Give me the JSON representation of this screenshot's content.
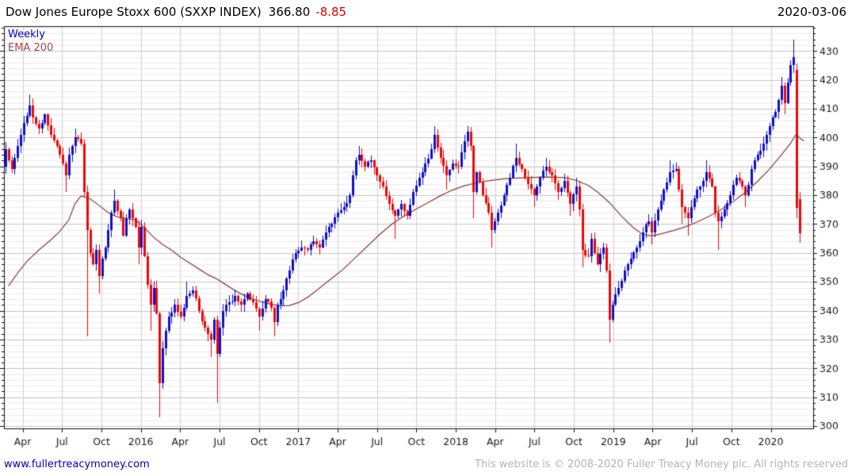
{
  "header": {
    "title": "Dow Jones Europe Stoxx 600 (SXXP INDEX)",
    "last_price": "366.80",
    "change": "-8.85",
    "date": "2020-03-06"
  },
  "legend": {
    "series_label": "Weekly",
    "ema_label": "EMA 200"
  },
  "footer": {
    "site_link": "www.fullertreacymoney.com",
    "copyright": "This website is © 2008-2020 Fuller Treacy Money plc. All rights reserved"
  },
  "colors": {
    "up": "#1111cc",
    "down": "#ee0707",
    "ema": "#8d3a3a",
    "grid_major": "#c3c3c3",
    "grid_minor": "#ededed",
    "grid_vert": "#d0d0d0",
    "axis": "#111111",
    "tick_label": "#1a1a1a"
  },
  "chart_data": {
    "type": "candlestick",
    "period": "weekly",
    "instrument": "SXXP",
    "weeks_total": 264,
    "ylim": [
      299.2,
      438.6
    ],
    "y_major_step": 10,
    "y_minor_step": 2,
    "y_ticks": [
      300,
      310,
      320,
      330,
      340,
      350,
      360,
      370,
      380,
      390,
      400,
      410,
      420,
      430
    ],
    "x_ticks": [
      [
        "Apr",
        5.7
      ],
      [
        "Jul",
        18.74
      ],
      [
        "Oct",
        31.78
      ],
      [
        "2016",
        44.82
      ],
      [
        "Apr",
        57.86
      ],
      [
        "Jul",
        70.9
      ],
      [
        "Oct",
        83.94
      ],
      [
        "2017",
        96.98
      ],
      [
        "Apr",
        110.02
      ],
      [
        "Jul",
        123.06
      ],
      [
        "Oct",
        136.1
      ],
      [
        "2018",
        149.14
      ],
      [
        "Apr",
        162.18
      ],
      [
        "Jul",
        175.22
      ],
      [
        "Oct",
        188.26
      ],
      [
        "2019",
        201.3
      ],
      [
        "Apr",
        214.34
      ],
      [
        "Jul",
        227.38
      ],
      [
        "Oct",
        240.42
      ],
      [
        "2020",
        253.46
      ]
    ],
    "xlim_weeks": [
      -0.5,
      267.5
    ],
    "wiggle": 2.3,
    "noise": 1.7,
    "close_anchors": [
      [
        0,
        396,
        null,
        null,
        390
      ],
      [
        1,
        392
      ],
      [
        2,
        389
      ],
      [
        3,
        393
      ],
      [
        4,
        397
      ],
      [
        5,
        401
      ],
      [
        6,
        405
      ],
      [
        8,
        411,
        null,
        415
      ],
      [
        9,
        407
      ],
      [
        11,
        403
      ],
      [
        13,
        408
      ],
      [
        15,
        401
      ],
      [
        17,
        397
      ],
      [
        19,
        391
      ],
      [
        20,
        387,
        381,
        null
      ],
      [
        21,
        394
      ],
      [
        23,
        400,
        null,
        403
      ],
      [
        25,
        398
      ],
      [
        26,
        381
      ],
      [
        27,
        368,
        331,
        null
      ],
      [
        28,
        360
      ],
      [
        29,
        356
      ],
      [
        30,
        361
      ],
      [
        31,
        352,
        346,
        null
      ],
      [
        32,
        358
      ],
      [
        33,
        362
      ],
      [
        34,
        368
      ],
      [
        35,
        374
      ],
      [
        36,
        378,
        null,
        382
      ],
      [
        38,
        372
      ],
      [
        39,
        366
      ],
      [
        40,
        372
      ],
      [
        41,
        375
      ],
      [
        43,
        369
      ],
      [
        44,
        362,
        356,
        null
      ],
      [
        45,
        369
      ],
      [
        46,
        359
      ],
      [
        47,
        349
      ],
      [
        48,
        342,
        333,
        null
      ],
      [
        49,
        348
      ],
      [
        50,
        339
      ],
      [
        51,
        315,
        303,
        null
      ],
      [
        52,
        327
      ],
      [
        53,
        333
      ],
      [
        54,
        338
      ],
      [
        56,
        342
      ],
      [
        58,
        338
      ],
      [
        60,
        345,
        null,
        350
      ],
      [
        62,
        347
      ],
      [
        64,
        340
      ],
      [
        66,
        334
      ],
      [
        68,
        330,
        324,
        null
      ],
      [
        69,
        337
      ],
      [
        70,
        325,
        308,
        null
      ],
      [
        71,
        334
      ],
      [
        72,
        340
      ],
      [
        74,
        343
      ],
      [
        76,
        345
      ],
      [
        78,
        342
      ],
      [
        80,
        346
      ],
      [
        82,
        343
      ],
      [
        84,
        338,
        333,
        null
      ],
      [
        86,
        344
      ],
      [
        88,
        341
      ],
      [
        89,
        336,
        331,
        null
      ],
      [
        90,
        342
      ],
      [
        92,
        347
      ],
      [
        94,
        354
      ],
      [
        96,
        360
      ],
      [
        98,
        362
      ],
      [
        100,
        361
      ],
      [
        102,
        364
      ],
      [
        104,
        362
      ],
      [
        106,
        367
      ],
      [
        108,
        370
      ],
      [
        110,
        374
      ],
      [
        112,
        376
      ],
      [
        114,
        380
      ],
      [
        115,
        387
      ],
      [
        116,
        392
      ],
      [
        117,
        394,
        null,
        397
      ],
      [
        119,
        390
      ],
      [
        121,
        392
      ],
      [
        123,
        387
      ],
      [
        125,
        383
      ],
      [
        127,
        377
      ],
      [
        129,
        373,
        365,
        null
      ],
      [
        131,
        377
      ],
      [
        133,
        373
      ],
      [
        135,
        381
      ],
      [
        137,
        386
      ],
      [
        139,
        391
      ],
      [
        141,
        396
      ],
      [
        142,
        401,
        null,
        404
      ],
      [
        144,
        393
      ],
      [
        146,
        387,
        382,
        null
      ],
      [
        148,
        391
      ],
      [
        150,
        390
      ],
      [
        151,
        395
      ],
      [
        153,
        402,
        null,
        404
      ],
      [
        154,
        397
      ],
      [
        155,
        381,
        372,
        null
      ],
      [
        156,
        388
      ],
      [
        158,
        380
      ],
      [
        160,
        374
      ],
      [
        161,
        368,
        362,
        null
      ],
      [
        163,
        374
      ],
      [
        165,
        380
      ],
      [
        167,
        386
      ],
      [
        169,
        393,
        null,
        398
      ],
      [
        171,
        389
      ],
      [
        173,
        384
      ],
      [
        175,
        380,
        376,
        null
      ],
      [
        177,
        386
      ],
      [
        179,
        390,
        null,
        393
      ],
      [
        181,
        387
      ],
      [
        183,
        381
      ],
      [
        185,
        385
      ],
      [
        187,
        377,
        373,
        null
      ],
      [
        189,
        383,
        null,
        386
      ],
      [
        190,
        375
      ],
      [
        191,
        361,
        355,
        null
      ],
      [
        193,
        359
      ],
      [
        194,
        365
      ],
      [
        196,
        356
      ],
      [
        198,
        362
      ],
      [
        199,
        354
      ],
      [
        200,
        337,
        329,
        null
      ],
      [
        201,
        342
      ],
      [
        203,
        348
      ],
      [
        205,
        354
      ],
      [
        207,
        358
      ],
      [
        209,
        362
      ],
      [
        211,
        367
      ],
      [
        213,
        371
      ],
      [
        214,
        367,
        363,
        null
      ],
      [
        216,
        375
      ],
      [
        218,
        382
      ],
      [
        220,
        388,
        null,
        392
      ],
      [
        222,
        389
      ],
      [
        223,
        382
      ],
      [
        224,
        376,
        370,
        null
      ],
      [
        226,
        372,
        366,
        null
      ],
      [
        228,
        379
      ],
      [
        230,
        383
      ],
      [
        232,
        388,
        null,
        392
      ],
      [
        234,
        383
      ],
      [
        235,
        374
      ],
      [
        236,
        371,
        361,
        null
      ],
      [
        238,
        375
      ],
      [
        240,
        380
      ],
      [
        242,
        386
      ],
      [
        244,
        383
      ],
      [
        245,
        380,
        376,
        null
      ],
      [
        247,
        389
      ],
      [
        249,
        394
      ],
      [
        251,
        398
      ],
      [
        253,
        404
      ],
      [
        255,
        409
      ],
      [
        256,
        413
      ],
      [
        257,
        418,
        null,
        421
      ],
      [
        258,
        412,
        408,
        null
      ],
      [
        259,
        419
      ],
      [
        260,
        425
      ],
      [
        261,
        428,
        null,
        434
      ],
      [
        262,
        375.6,
        372,
        null,
        423.6
      ],
      [
        263,
        366.8,
        363.5,
        381,
        378.6
      ]
    ],
    "ema_points": [
      [
        1,
        348.6
      ],
      [
        4,
        353
      ],
      [
        7,
        357
      ],
      [
        11,
        361
      ],
      [
        15,
        364.5
      ],
      [
        18,
        367.5
      ],
      [
        21,
        371.5
      ],
      [
        23,
        377
      ],
      [
        25,
        379.8
      ],
      [
        28,
        378.8
      ],
      [
        31,
        376.5
      ],
      [
        34,
        374
      ],
      [
        37,
        372.5
      ],
      [
        40,
        372
      ],
      [
        43,
        371.5
      ],
      [
        46,
        368.8
      ],
      [
        49,
        365.5
      ],
      [
        52,
        363
      ],
      [
        55,
        361
      ],
      [
        58,
        358.5
      ],
      [
        61,
        356.5
      ],
      [
        64,
        354.5
      ],
      [
        67,
        352.5
      ],
      [
        70,
        351
      ],
      [
        73,
        349
      ],
      [
        76,
        347
      ],
      [
        79,
        345.3
      ],
      [
        82,
        344
      ],
      [
        85,
        343
      ],
      [
        88,
        342.2
      ],
      [
        91,
        341.7
      ],
      [
        94,
        341.8
      ],
      [
        97,
        342.8
      ],
      [
        100,
        344.6
      ],
      [
        103,
        347
      ],
      [
        106,
        349.5
      ],
      [
        109,
        352
      ],
      [
        112,
        354.5
      ],
      [
        116,
        358.5
      ],
      [
        120,
        362.5
      ],
      [
        124,
        366.5
      ],
      [
        128,
        370
      ],
      [
        132,
        372.8
      ],
      [
        136,
        375.2
      ],
      [
        140,
        377.5
      ],
      [
        144,
        379.8
      ],
      [
        148,
        381.8
      ],
      [
        152,
        383.3
      ],
      [
        156,
        384.3
      ],
      [
        160,
        385
      ],
      [
        165,
        385.7
      ],
      [
        170,
        386
      ],
      [
        175,
        386.2
      ],
      [
        180,
        386.3
      ],
      [
        185,
        386.1
      ],
      [
        189,
        385.2
      ],
      [
        193,
        383.4
      ],
      [
        196,
        381.2
      ],
      [
        200,
        377.5
      ],
      [
        204,
        372.8
      ],
      [
        208,
        368.7
      ],
      [
        211,
        366.5
      ],
      [
        214,
        365.9
      ],
      [
        217,
        366.6
      ],
      [
        221,
        367.7
      ],
      [
        225,
        369
      ],
      [
        229,
        370.7
      ],
      [
        233,
        372.7
      ],
      [
        237,
        375
      ],
      [
        241,
        377.8
      ],
      [
        245,
        381
      ],
      [
        249,
        384.7
      ],
      [
        253,
        389
      ],
      [
        257,
        394
      ],
      [
        260,
        398
      ],
      [
        262,
        401.4
      ],
      [
        263,
        399.8
      ],
      [
        264.5,
        398.8
      ]
    ]
  }
}
